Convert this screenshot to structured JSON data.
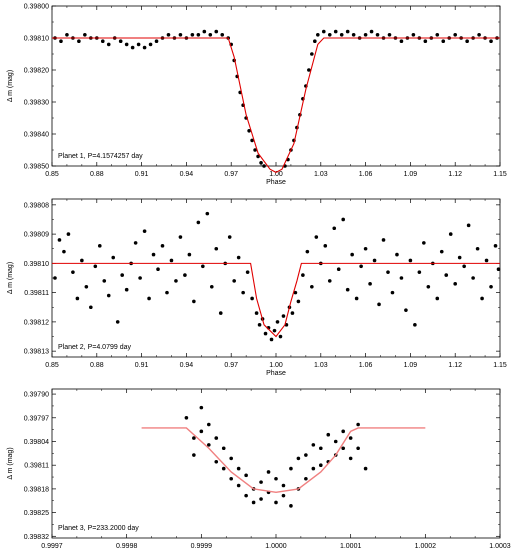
{
  "colors": {
    "points": "#000000",
    "model": "#e00000",
    "model_light": "#f08080",
    "axis": "#000000"
  },
  "chart_data": [
    {
      "type": "scatter",
      "xlabel": "Phase",
      "ylabel": "Δ m  (mag)",
      "annotation": "Planet 1, P=4.1574257 day",
      "xlim": [
        0.85,
        1.15
      ],
      "ylim": [
        0.398,
        0.3985
      ],
      "y_inverted": true,
      "xticks": [
        0.85,
        0.88,
        0.91,
        0.94,
        0.97,
        1.0,
        1.03,
        1.06,
        1.09,
        1.12,
        1.15
      ],
      "xtick_labels": [
        "0.85",
        "0.88",
        "0.91",
        "0.94",
        "0.97",
        "1.00",
        "1.03",
        "1.06",
        "1.09",
        "1.12",
        "1.15"
      ],
      "yticks": [
        0.398,
        0.3981,
        0.3982,
        0.3983,
        0.3984,
        0.3985
      ],
      "ytick_labels": [
        "0.39800",
        "0.39810",
        "0.39820",
        "0.39830",
        "0.39840",
        "0.39850"
      ],
      "baseline": 0.3981,
      "points": [
        [
          0.852,
          0.3981
        ],
        [
          0.856,
          0.39811
        ],
        [
          0.86,
          0.39809
        ],
        [
          0.864,
          0.3981
        ],
        [
          0.868,
          0.39811
        ],
        [
          0.872,
          0.39809
        ],
        [
          0.876,
          0.3981
        ],
        [
          0.88,
          0.3981
        ],
        [
          0.884,
          0.39811
        ],
        [
          0.888,
          0.39812
        ],
        [
          0.892,
          0.3981
        ],
        [
          0.896,
          0.39811
        ],
        [
          0.9,
          0.39812
        ],
        [
          0.904,
          0.39813
        ],
        [
          0.908,
          0.39812
        ],
        [
          0.912,
          0.39813
        ],
        [
          0.916,
          0.39812
        ],
        [
          0.92,
          0.39811
        ],
        [
          0.924,
          0.3981
        ],
        [
          0.928,
          0.39809
        ],
        [
          0.932,
          0.3981
        ],
        [
          0.936,
          0.39809
        ],
        [
          0.94,
          0.3981
        ],
        [
          0.944,
          0.39809
        ],
        [
          0.948,
          0.39809
        ],
        [
          0.952,
          0.39808
        ],
        [
          0.956,
          0.39809
        ],
        [
          0.96,
          0.39808
        ],
        [
          0.964,
          0.39809
        ],
        [
          0.968,
          0.3981
        ],
        [
          0.97,
          0.39812
        ],
        [
          0.972,
          0.39817
        ],
        [
          0.974,
          0.39822
        ],
        [
          0.976,
          0.39827
        ],
        [
          0.978,
          0.39831
        ],
        [
          0.98,
          0.39835
        ],
        [
          0.982,
          0.39839
        ],
        [
          0.984,
          0.39842
        ],
        [
          0.986,
          0.39845
        ],
        [
          0.988,
          0.39847
        ],
        [
          0.99,
          0.39849
        ],
        [
          0.992,
          0.3985
        ],
        [
          0.994,
          0.39851
        ],
        [
          0.996,
          0.39852
        ],
        [
          0.998,
          0.39852
        ],
        [
          1.0,
          0.39852
        ],
        [
          1.002,
          0.39852
        ],
        [
          1.004,
          0.39851
        ],
        [
          1.006,
          0.3985
        ],
        [
          1.008,
          0.39848
        ],
        [
          1.01,
          0.39845
        ],
        [
          1.012,
          0.39842
        ],
        [
          1.014,
          0.39838
        ],
        [
          1.016,
          0.39834
        ],
        [
          1.018,
          0.39829
        ],
        [
          1.02,
          0.39825
        ],
        [
          1.022,
          0.3982
        ],
        [
          1.024,
          0.39815
        ],
        [
          1.026,
          0.39811
        ],
        [
          1.028,
          0.39809
        ],
        [
          1.032,
          0.39808
        ],
        [
          1.036,
          0.39809
        ],
        [
          1.04,
          0.39808
        ],
        [
          1.044,
          0.39809
        ],
        [
          1.048,
          0.39808
        ],
        [
          1.052,
          0.39809
        ],
        [
          1.056,
          0.3981
        ],
        [
          1.06,
          0.39809
        ],
        [
          1.064,
          0.39808
        ],
        [
          1.068,
          0.39809
        ],
        [
          1.072,
          0.3981
        ],
        [
          1.076,
          0.39809
        ],
        [
          1.08,
          0.3981
        ],
        [
          1.084,
          0.39811
        ],
        [
          1.088,
          0.3981
        ],
        [
          1.092,
          0.39809
        ],
        [
          1.096,
          0.3981
        ],
        [
          1.1,
          0.39811
        ],
        [
          1.104,
          0.3981
        ],
        [
          1.108,
          0.39809
        ],
        [
          1.112,
          0.39811
        ],
        [
          1.116,
          0.3981
        ],
        [
          1.12,
          0.39809
        ],
        [
          1.124,
          0.3981
        ],
        [
          1.128,
          0.39811
        ],
        [
          1.132,
          0.3981
        ],
        [
          1.136,
          0.39809
        ],
        [
          1.14,
          0.3981
        ],
        [
          1.144,
          0.39811
        ],
        [
          1.148,
          0.3981
        ]
      ],
      "model": [
        [
          0.85,
          0.3981
        ],
        [
          0.968,
          0.3981
        ],
        [
          0.972,
          0.39816
        ],
        [
          0.98,
          0.39834
        ],
        [
          0.988,
          0.39846
        ],
        [
          0.996,
          0.39851
        ],
        [
          1.0,
          0.39852
        ],
        [
          1.004,
          0.39851
        ],
        [
          1.012,
          0.39843
        ],
        [
          1.02,
          0.39826
        ],
        [
          1.028,
          0.39812
        ],
        [
          1.032,
          0.3981
        ],
        [
          1.15,
          0.3981
        ]
      ]
    },
    {
      "type": "scatter",
      "xlabel": "Phase",
      "ylabel": "Δ m  (mag)",
      "annotation": "Planet 2, P=4.0799 day",
      "xlim": [
        0.85,
        1.15
      ],
      "ylim": [
        0.398078,
        0.398132
      ],
      "y_inverted": true,
      "xticks": [
        0.85,
        0.88,
        0.91,
        0.94,
        0.97,
        1.0,
        1.03,
        1.06,
        1.09,
        1.12,
        1.15
      ],
      "xtick_labels": [
        "0.85",
        "0.88",
        "0.91",
        "0.94",
        "0.97",
        "1.00",
        "1.03",
        "1.06",
        "1.09",
        "1.12",
        "1.15"
      ],
      "yticks": [
        0.39808,
        0.39809,
        0.3981,
        0.39811,
        0.39812,
        0.39813
      ],
      "ytick_labels": [
        "0.39808",
        "0.39809",
        "0.39810",
        "0.39811",
        "0.39812",
        "0.39813"
      ],
      "baseline": 0.3981,
      "points": [
        [
          0.852,
          0.398105
        ],
        [
          0.855,
          0.398092
        ],
        [
          0.858,
          0.398096
        ],
        [
          0.861,
          0.39809
        ],
        [
          0.864,
          0.398103
        ],
        [
          0.867,
          0.398112
        ],
        [
          0.87,
          0.398099
        ],
        [
          0.873,
          0.398108
        ],
        [
          0.876,
          0.398115
        ],
        [
          0.879,
          0.398101
        ],
        [
          0.882,
          0.398094
        ],
        [
          0.885,
          0.398106
        ],
        [
          0.888,
          0.398111
        ],
        [
          0.891,
          0.398098
        ],
        [
          0.894,
          0.39812
        ],
        [
          0.897,
          0.398104
        ],
        [
          0.9,
          0.398109
        ],
        [
          0.903,
          0.3981
        ],
        [
          0.906,
          0.398093
        ],
        [
          0.909,
          0.398105
        ],
        [
          0.912,
          0.398089
        ],
        [
          0.915,
          0.398112
        ],
        [
          0.918,
          0.398097
        ],
        [
          0.921,
          0.398102
        ],
        [
          0.924,
          0.398094
        ],
        [
          0.927,
          0.39811
        ],
        [
          0.93,
          0.398099
        ],
        [
          0.933,
          0.398106
        ],
        [
          0.936,
          0.398091
        ],
        [
          0.939,
          0.398104
        ],
        [
          0.942,
          0.398097
        ],
        [
          0.945,
          0.398113
        ],
        [
          0.948,
          0.398086
        ],
        [
          0.951,
          0.398101
        ],
        [
          0.954,
          0.398083
        ],
        [
          0.957,
          0.398108
        ],
        [
          0.96,
          0.398095
        ],
        [
          0.963,
          0.398117
        ],
        [
          0.966,
          0.3981
        ],
        [
          0.969,
          0.398091
        ],
        [
          0.972,
          0.398106
        ],
        [
          0.975,
          0.398098
        ],
        [
          0.978,
          0.39811
        ],
        [
          0.981,
          0.398103
        ],
        [
          0.984,
          0.398112
        ],
        [
          0.987,
          0.398117
        ],
        [
          0.989,
          0.398121
        ],
        [
          0.991,
          0.398119
        ],
        [
          0.993,
          0.398124
        ],
        [
          0.995,
          0.398122
        ],
        [
          0.997,
          0.398126
        ],
        [
          0.999,
          0.398123
        ],
        [
          1.001,
          0.39812
        ],
        [
          1.003,
          0.398125
        ],
        [
          1.005,
          0.398118
        ],
        [
          1.007,
          0.398121
        ],
        [
          1.009,
          0.398115
        ],
        [
          1.011,
          0.398117
        ],
        [
          1.013,
          0.39811
        ],
        [
          1.015,
          0.398113
        ],
        [
          1.018,
          0.398104
        ],
        [
          1.021,
          0.398096
        ],
        [
          1.024,
          0.398108
        ],
        [
          1.027,
          0.398091
        ],
        [
          1.03,
          0.3981
        ],
        [
          1.033,
          0.398094
        ],
        [
          1.036,
          0.398106
        ],
        [
          1.039,
          0.398088
        ],
        [
          1.042,
          0.398102
        ],
        [
          1.045,
          0.398085
        ],
        [
          1.048,
          0.398109
        ],
        [
          1.051,
          0.398097
        ],
        [
          1.054,
          0.398112
        ],
        [
          1.057,
          0.398101
        ],
        [
          1.06,
          0.398095
        ],
        [
          1.063,
          0.398107
        ],
        [
          1.066,
          0.398099
        ],
        [
          1.069,
          0.398114
        ],
        [
          1.072,
          0.398092
        ],
        [
          1.075,
          0.398103
        ],
        [
          1.078,
          0.39811
        ],
        [
          1.081,
          0.398097
        ],
        [
          1.084,
          0.398105
        ],
        [
          1.087,
          0.398116
        ],
        [
          1.09,
          0.398099
        ],
        [
          1.093,
          0.398121
        ],
        [
          1.096,
          0.398103
        ],
        [
          1.099,
          0.398093
        ],
        [
          1.102,
          0.398108
        ],
        [
          1.105,
          0.3981
        ],
        [
          1.108,
          0.398112
        ],
        [
          1.111,
          0.398096
        ],
        [
          1.114,
          0.398104
        ],
        [
          1.117,
          0.39809
        ],
        [
          1.12,
          0.398107
        ],
        [
          1.123,
          0.398098
        ],
        [
          1.126,
          0.398101
        ],
        [
          1.129,
          0.398087
        ],
        [
          1.132,
          0.398105
        ],
        [
          1.135,
          0.398095
        ],
        [
          1.138,
          0.398112
        ],
        [
          1.141,
          0.398099
        ],
        [
          1.144,
          0.398108
        ],
        [
          1.147,
          0.398094
        ],
        [
          1.149,
          0.398102
        ]
      ],
      "model": [
        [
          0.85,
          0.3981
        ],
        [
          0.983,
          0.3981
        ],
        [
          0.987,
          0.398112
        ],
        [
          0.992,
          0.398121
        ],
        [
          1.0,
          0.398125
        ],
        [
          1.006,
          0.398121
        ],
        [
          1.01,
          0.398113
        ],
        [
          1.014,
          0.398106
        ],
        [
          1.017,
          0.3981
        ],
        [
          1.15,
          0.3981
        ]
      ]
    },
    {
      "type": "scatter",
      "xlabel": "Phase",
      "ylabel": "Δ m  (mag)",
      "annotation": "Planet 3, P=233.2000 day",
      "xlim": [
        0.9997,
        1.0003
      ],
      "ylim": [
        0.397885,
        0.398325
      ],
      "y_inverted": true,
      "xticks": [
        0.9997,
        0.9998,
        0.9999,
        1.0,
        1.0001,
        1.0002,
        1.0003
      ],
      "xtick_labels": [
        "0.9997",
        "0.9998",
        "0.9999",
        "1.0000",
        "1.0001",
        "1.0002",
        "1.0003"
      ],
      "yticks": [
        0.3979,
        0.39797,
        0.39804,
        0.39811,
        0.39818,
        0.39825,
        0.39832
      ],
      "ytick_labels": [
        "0.39790",
        "0.39797",
        "0.39804",
        "0.39811",
        "0.39818",
        "0.39825",
        "0.39832"
      ],
      "baseline": 0.398,
      "points": [
        [
          0.99988,
          0.39797
        ],
        [
          0.99989,
          0.39803
        ],
        [
          0.99989,
          0.39808
        ],
        [
          0.9999,
          0.39801
        ],
        [
          0.9999,
          0.39794
        ],
        [
          0.99991,
          0.39805
        ],
        [
          0.99991,
          0.39799
        ],
        [
          0.99992,
          0.3981
        ],
        [
          0.99992,
          0.39803
        ],
        [
          0.99993,
          0.39812
        ],
        [
          0.99993,
          0.39806
        ],
        [
          0.99994,
          0.39815
        ],
        [
          0.99994,
          0.39809
        ],
        [
          0.99995,
          0.39817
        ],
        [
          0.99995,
          0.39812
        ],
        [
          0.99996,
          0.3982
        ],
        [
          0.99996,
          0.39814
        ],
        [
          0.99997,
          0.39822
        ],
        [
          0.99997,
          0.39818
        ],
        [
          0.99998,
          0.39816
        ],
        [
          0.99998,
          0.39821
        ],
        [
          0.99999,
          0.39813
        ],
        [
          0.99999,
          0.39819
        ],
        [
          1.0,
          0.39822
        ],
        [
          1.0,
          0.39815
        ],
        [
          1.00001,
          0.3982
        ],
        [
          1.00001,
          0.39817
        ],
        [
          1.00002,
          0.39823
        ],
        [
          1.00002,
          0.39812
        ],
        [
          1.00003,
          0.39818
        ],
        [
          1.00003,
          0.39809
        ],
        [
          1.00004,
          0.39815
        ],
        [
          1.00004,
          0.39808
        ],
        [
          1.00005,
          0.39812
        ],
        [
          1.00005,
          0.39805
        ],
        [
          1.00006,
          0.39811
        ],
        [
          1.00006,
          0.39806
        ],
        [
          1.00007,
          0.3981
        ],
        [
          1.00007,
          0.39802
        ],
        [
          1.00008,
          0.39808
        ],
        [
          1.00008,
          0.39804
        ],
        [
          1.00009,
          0.39806
        ],
        [
          1.00009,
          0.39801
        ],
        [
          1.0001,
          0.39803
        ],
        [
          1.0001,
          0.39809
        ],
        [
          1.00011,
          0.39799
        ],
        [
          1.00011,
          0.39806
        ],
        [
          1.00012,
          0.39812
        ]
      ],
      "model": [
        [
          0.99982,
          0.398
        ],
        [
          0.99988,
          0.398
        ],
        [
          0.99991,
          0.39806
        ],
        [
          0.99994,
          0.39813
        ],
        [
          0.99997,
          0.39818
        ],
        [
          1.0,
          0.39819
        ],
        [
          1.00003,
          0.39818
        ],
        [
          1.00006,
          0.39813
        ],
        [
          1.00008,
          0.39808
        ],
        [
          1.0001,
          0.39801
        ],
        [
          1.00011,
          0.398
        ],
        [
          1.0002,
          0.398
        ]
      ]
    }
  ]
}
